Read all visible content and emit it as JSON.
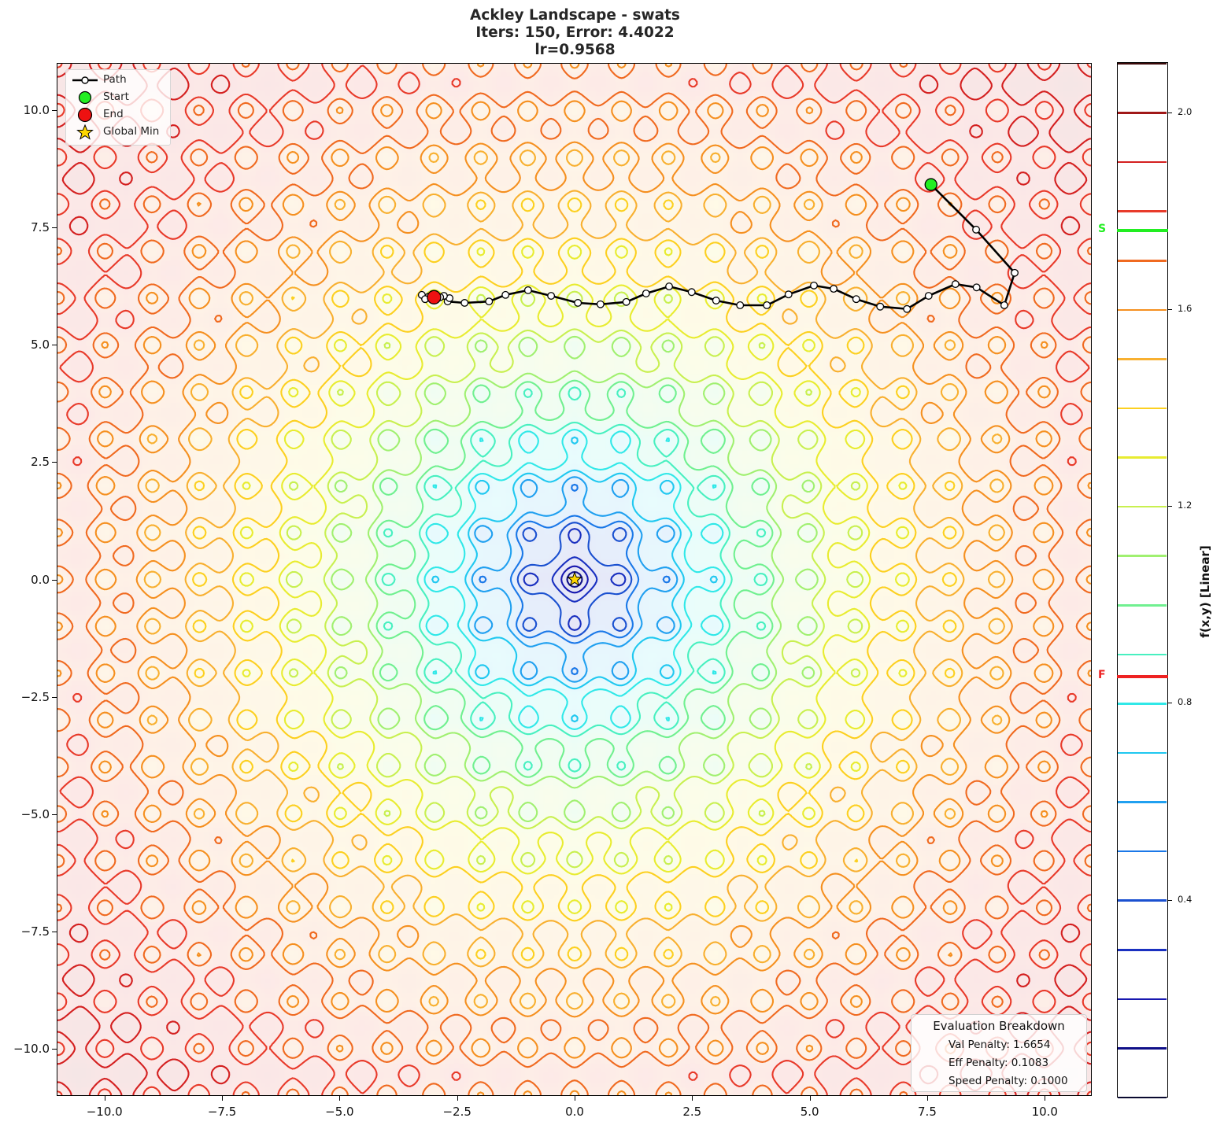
{
  "chart_data": {
    "type": "contour",
    "title": "Ackley Landscape - swats",
    "subtitle_lines": [
      "Iters: 150, Error: 4.4022",
      "lr=0.9568"
    ],
    "function": "ackley",
    "value_scale": 0.1,
    "xlim": [
      -11,
      11
    ],
    "ylim": [
      -11,
      11
    ],
    "xticks": [
      -10.0,
      -7.5,
      -5.0,
      -2.5,
      0.0,
      2.5,
      5.0,
      7.5,
      10.0
    ],
    "xtick_labels": [
      "−10.0",
      "−7.5",
      "−5.0",
      "−2.5",
      "0.0",
      "2.5",
      "5.0",
      "7.5",
      "10.0"
    ],
    "yticks": [
      10.0,
      7.5,
      5.0,
      2.5,
      0.0,
      -2.5,
      -5.0,
      -7.5,
      -10.0
    ],
    "ytick_labels": [
      "10.0",
      "7.5",
      "5.0",
      "2.5",
      "0.0",
      "−2.5",
      "−5.0",
      "−7.5",
      "−10.0"
    ],
    "grid": false,
    "contour_levels": [
      0.0,
      0.1,
      0.2,
      0.3,
      0.4,
      0.5,
      0.6,
      0.7,
      0.8,
      0.9,
      1.0,
      1.1,
      1.2,
      1.3,
      1.4,
      1.5,
      1.6,
      1.7,
      1.8,
      1.9,
      2.0,
      2.1
    ],
    "level_colors": [
      "#0a0a30",
      "#101088",
      "#1818b0",
      "#1a30c0",
      "#1a50d0",
      "#1a78e8",
      "#20a0f0",
      "#20c8f0",
      "#30e8e8",
      "#48f0c0",
      "#70f090",
      "#a0f070",
      "#c8f050",
      "#e8ec30",
      "#fcd020",
      "#f8b030",
      "#f59020",
      "#f06a20",
      "#e83a2a",
      "#d42020",
      "#a01818",
      "#3d0a0a"
    ],
    "path": {
      "label": "Path",
      "color": "#000000",
      "points": [
        [
          7.58,
          8.41
        ],
        [
          8.54,
          7.45
        ],
        [
          9.36,
          6.53
        ],
        [
          9.14,
          5.84
        ],
        [
          8.55,
          6.22
        ],
        [
          8.1,
          6.29
        ],
        [
          7.53,
          6.04
        ],
        [
          7.07,
          5.76
        ],
        [
          6.5,
          5.81
        ],
        [
          5.99,
          5.97
        ],
        [
          5.51,
          6.19
        ],
        [
          5.09,
          6.26
        ],
        [
          4.55,
          6.07
        ],
        [
          4.09,
          5.84
        ],
        [
          3.52,
          5.84
        ],
        [
          3.01,
          5.94
        ],
        [
          2.49,
          6.12
        ],
        [
          2.01,
          6.24
        ],
        [
          1.52,
          6.09
        ],
        [
          1.1,
          5.91
        ],
        [
          0.55,
          5.86
        ],
        [
          0.07,
          5.89
        ],
        [
          -0.5,
          6.04
        ],
        [
          -0.99,
          6.16
        ],
        [
          -1.47,
          6.06
        ],
        [
          -1.82,
          5.92
        ],
        [
          -2.34,
          5.89
        ],
        [
          -2.7,
          5.92
        ],
        [
          -2.66,
          5.99
        ],
        [
          -2.78,
          6.04
        ],
        [
          -3.11,
          6.02
        ],
        [
          -3.25,
          6.06
        ],
        [
          -3.18,
          5.97
        ],
        [
          -2.86,
          6.01
        ],
        [
          -2.99,
          6.01
        ]
      ]
    },
    "start": {
      "label": "Start",
      "x": 7.58,
      "y": 8.41,
      "color": "#22ee22"
    },
    "end": {
      "label": "End",
      "x": -2.99,
      "y": 6.01,
      "color": "#ee1111"
    },
    "global_min": {
      "label": "Global Min",
      "x": 0.0,
      "y": 0.0,
      "color": "#ffd700"
    },
    "colorbar": {
      "label": "f(x,y) [Linear]",
      "range": [
        0.0,
        2.1
      ],
      "ticks": [
        2.0,
        1.6,
        1.2,
        0.8,
        0.4
      ],
      "tick_labels": [
        "2.0",
        "1.6",
        "1.2",
        "0.8",
        "0.4"
      ],
      "markers": [
        {
          "label": "S",
          "value": 1.76,
          "color": "#22ee22"
        },
        {
          "label": "F",
          "value": 0.854,
          "color": "#ee2222"
        }
      ]
    },
    "legend": {
      "position": "upper left",
      "entries": [
        "Path",
        "Start",
        "End",
        "Global Min"
      ]
    },
    "annotation": {
      "title": "Evaluation Breakdown",
      "lines": [
        "Val Penalty: 1.6654",
        "Eff Penalty: 0.1083",
        "Speed Penalty: 0.1000"
      ]
    }
  },
  "title": {
    "line1": "Ackley Landscape - swats",
    "line2": "Iters: 150, Error: 4.4022",
    "line3": "lr=0.9568"
  },
  "legend": {
    "path": "Path",
    "start": "Start",
    "end": "End",
    "global_min": "Global Min"
  },
  "eval": {
    "title": "Evaluation Breakdown",
    "val": "Val Penalty: 1.6654",
    "eff": "Eff Penalty: 0.1083",
    "speed": "Speed Penalty: 0.1000"
  },
  "colorbar": {
    "label": "f(x,y) [Linear]",
    "s_label": "S",
    "f_label": "F"
  }
}
